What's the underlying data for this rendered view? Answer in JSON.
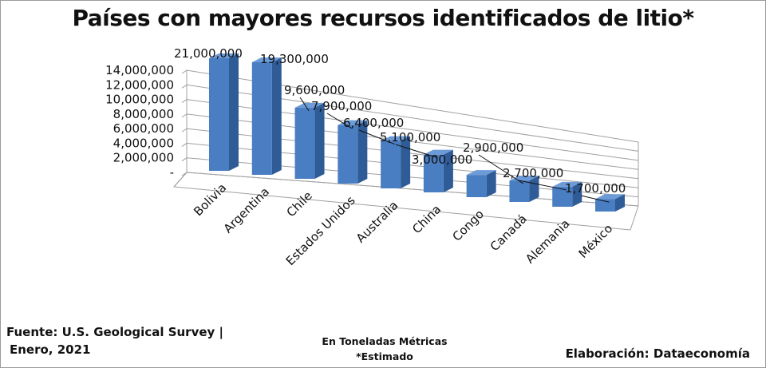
{
  "chart_data": {
    "type": "bar",
    "title": "Países con mayores recursos identificados de litio*",
    "categories": [
      "Bolivia",
      "Argentina",
      "Chile",
      "Estados Unidos",
      "Australia",
      "China",
      "Congo",
      "Canadá",
      "Alemania",
      "México"
    ],
    "values": [
      21000000,
      19300000,
      9600000,
      7900000,
      6400000,
      5100000,
      3000000,
      2900000,
      2700000,
      1700000
    ],
    "value_labels": [
      "21,000,000",
      "19,300,000",
      "9,600,000",
      "7,900,000",
      "6,400,000",
      "5,100,000",
      "3,000,000",
      "2,900,000",
      "2,700,000",
      "1,700,000"
    ],
    "y_ticks": [
      0,
      2000000,
      4000000,
      6000000,
      8000000,
      10000000,
      12000000,
      14000000
    ],
    "y_tick_labels": [
      "-",
      "2,000,000",
      "4,000,000",
      "6,000,000",
      "8,000,000",
      "10,000,000",
      "12,000,000",
      "14,000,000"
    ],
    "ylim": [
      0,
      14000000
    ],
    "grid": true,
    "bar_color": "#4a7ec2",
    "style": "3d-perspective columns"
  },
  "footer": {
    "source_line1": "Fuente: U.S. Geological Survey |",
    "source_line2": "Enero, 2021",
    "units_line1": "En Toneladas Métricas",
    "units_line2": "*Estimado",
    "credit": "Elaboración: Dataeconomía"
  }
}
